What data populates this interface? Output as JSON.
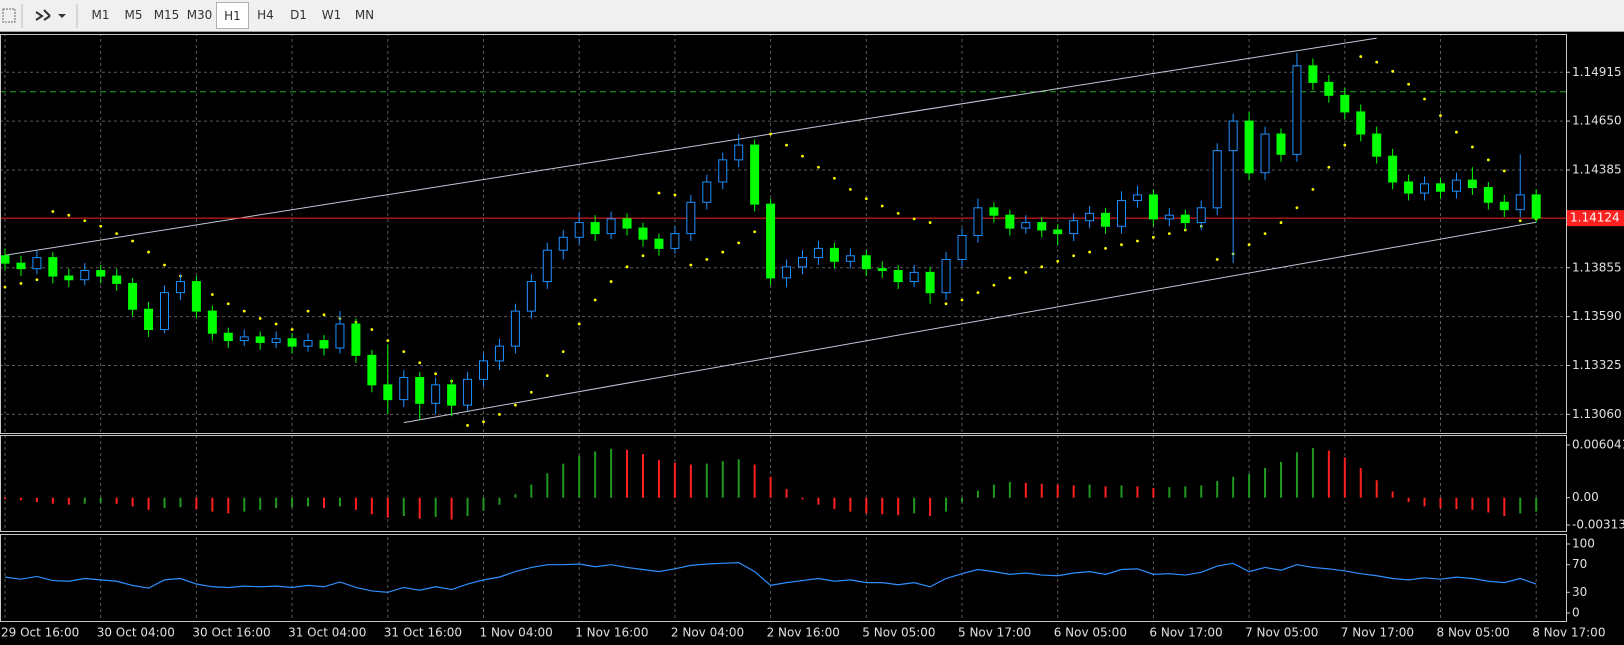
{
  "toolbar": {
    "timeframes": [
      "M1",
      "M5",
      "M15",
      "M30",
      "H1",
      "H4",
      "D1",
      "W1",
      "MN"
    ],
    "selected": 4
  },
  "chart_data": [
    {
      "type": "candlestick",
      "categories": [
        "29 Oct 16:00",
        null,
        null,
        null,
        null,
        null,
        "30 Oct 04:00",
        null,
        null,
        null,
        null,
        null,
        "30 Oct 16:00",
        null,
        null,
        null,
        null,
        null,
        "31 Oct 04:00",
        null,
        null,
        null,
        null,
        null,
        "31 Oct 16:00",
        null,
        null,
        null,
        null,
        null,
        "1 Nov 04:00",
        null,
        null,
        null,
        null,
        null,
        "1 Nov 16:00",
        null,
        null,
        null,
        null,
        null,
        "2 Nov 04:00",
        null,
        null,
        null,
        null,
        null,
        "2 Nov 16:00",
        null,
        null,
        null,
        null,
        null,
        "5 Nov 05:00",
        null,
        null,
        null,
        null,
        null,
        "5 Nov 17:00",
        null,
        null,
        null,
        null,
        null,
        "6 Nov 05:00",
        null,
        null,
        null,
        null,
        null,
        "6 Nov 17:00",
        null,
        null,
        null,
        null,
        null,
        "7 Nov 05:00",
        null,
        null,
        null,
        null,
        null,
        "7 Nov 17:00",
        null,
        null,
        null,
        null,
        null,
        "8 Nov 05:00",
        null,
        null,
        null,
        null,
        null,
        "8 Nov 17:00"
      ],
      "ohlc": [
        [
          1.1392,
          1.1396,
          1.1384,
          1.1388
        ],
        [
          1.1388,
          1.1392,
          1.1381,
          1.1385
        ],
        [
          1.1385,
          1.1395,
          1.1382,
          1.1391
        ],
        [
          1.1391,
          1.1394,
          1.1377,
          1.1381
        ],
        [
          1.1381,
          1.1385,
          1.1375,
          1.1379
        ],
        [
          1.1379,
          1.1388,
          1.1376,
          1.1384
        ],
        [
          1.1384,
          1.1387,
          1.1377,
          1.1381
        ],
        [
          1.1381,
          1.1385,
          1.1373,
          1.1377
        ],
        [
          1.1377,
          1.138,
          1.1359,
          1.1363
        ],
        [
          1.1363,
          1.1367,
          1.1348,
          1.1352
        ],
        [
          1.1352,
          1.1376,
          1.135,
          1.1372
        ],
        [
          1.1372,
          1.1382,
          1.1368,
          1.1378
        ],
        [
          1.1378,
          1.1381,
          1.1358,
          1.1362
        ],
        [
          1.1362,
          1.1365,
          1.1346,
          1.135
        ],
        [
          1.135,
          1.1353,
          1.1342,
          1.1346
        ],
        [
          1.1346,
          1.1352,
          1.1343,
          1.1348
        ],
        [
          1.1348,
          1.1351,
          1.1341,
          1.1345
        ],
        [
          1.1345,
          1.1351,
          1.1342,
          1.1347
        ],
        [
          1.1347,
          1.135,
          1.1339,
          1.1343
        ],
        [
          1.1343,
          1.135,
          1.134,
          1.1346
        ],
        [
          1.1346,
          1.1349,
          1.1338,
          1.1342
        ],
        [
          1.1342,
          1.1362,
          1.1339,
          1.1355
        ],
        [
          1.1355,
          1.1358,
          1.1334,
          1.1338
        ],
        [
          1.1338,
          1.1341,
          1.1318,
          1.1322
        ],
        [
          1.1322,
          1.1344,
          1.1306,
          1.1314
        ],
        [
          1.1314,
          1.133,
          1.131,
          1.1326
        ],
        [
          1.1326,
          1.1329,
          1.1303,
          1.1312
        ],
        [
          1.1312,
          1.1326,
          1.1306,
          1.1322
        ],
        [
          1.1322,
          1.1325,
          1.1305,
          1.1311
        ],
        [
          1.1311,
          1.1329,
          1.1308,
          1.1325
        ],
        [
          1.1325,
          1.1339,
          1.1321,
          1.1335
        ],
        [
          1.1335,
          1.1347,
          1.133,
          1.1343
        ],
        [
          1.1343,
          1.1366,
          1.1339,
          1.1362
        ],
        [
          1.1362,
          1.1382,
          1.1358,
          1.1378
        ],
        [
          1.1378,
          1.1399,
          1.1374,
          1.1395
        ],
        [
          1.1395,
          1.1406,
          1.139,
          1.1402
        ],
        [
          1.1402,
          1.1416,
          1.1398,
          1.141
        ],
        [
          1.141,
          1.1414,
          1.14,
          1.1404
        ],
        [
          1.1404,
          1.1416,
          1.1401,
          1.1412
        ],
        [
          1.1412,
          1.1415,
          1.1403,
          1.1407
        ],
        [
          1.1407,
          1.141,
          1.1397,
          1.1401
        ],
        [
          1.1401,
          1.1404,
          1.1392,
          1.1396
        ],
        [
          1.1396,
          1.1408,
          1.1393,
          1.1404
        ],
        [
          1.1404,
          1.1425,
          1.14,
          1.1421
        ],
        [
          1.1421,
          1.1436,
          1.1417,
          1.1432
        ],
        [
          1.1432,
          1.1448,
          1.1428,
          1.1444
        ],
        [
          1.1444,
          1.1458,
          1.144,
          1.1452
        ],
        [
          1.1452,
          1.1455,
          1.1416,
          1.142
        ],
        [
          1.142,
          1.1423,
          1.1376,
          1.138
        ],
        [
          1.138,
          1.139,
          1.1375,
          1.1386
        ],
        [
          1.1386,
          1.1395,
          1.1382,
          1.1391
        ],
        [
          1.1391,
          1.14,
          1.1387,
          1.1396
        ],
        [
          1.1396,
          1.1399,
          1.1385,
          1.1389
        ],
        [
          1.1389,
          1.1396,
          1.1385,
          1.1392
        ],
        [
          1.1392,
          1.1395,
          1.1381,
          1.1385
        ],
        [
          1.1385,
          1.1389,
          1.138,
          1.1384
        ],
        [
          1.1384,
          1.1387,
          1.1374,
          1.1378
        ],
        [
          1.1378,
          1.1387,
          1.1375,
          1.1383
        ],
        [
          1.1383,
          1.1386,
          1.1366,
          1.1372
        ],
        [
          1.1372,
          1.1394,
          1.1368,
          1.139
        ],
        [
          1.139,
          1.1407,
          1.1386,
          1.1403
        ],
        [
          1.1403,
          1.1423,
          1.1399,
          1.1418
        ],
        [
          1.1418,
          1.1421,
          1.141,
          1.1414
        ],
        [
          1.1414,
          1.1417,
          1.1403,
          1.1407
        ],
        [
          1.1407,
          1.1414,
          1.1404,
          1.141
        ],
        [
          1.141,
          1.1413,
          1.1402,
          1.1406
        ],
        [
          1.1406,
          1.1409,
          1.1398,
          1.1404
        ],
        [
          1.1404,
          1.1415,
          1.14,
          1.1411
        ],
        [
          1.1411,
          1.1419,
          1.1407,
          1.1415
        ],
        [
          1.1415,
          1.1418,
          1.1404,
          1.1408
        ],
        [
          1.1408,
          1.1427,
          1.1404,
          1.1422
        ],
        [
          1.1422,
          1.143,
          1.1418,
          1.1425
        ],
        [
          1.1425,
          1.1428,
          1.1408,
          1.1412
        ],
        [
          1.1412,
          1.1418,
          1.1408,
          1.1414
        ],
        [
          1.1414,
          1.1417,
          1.1406,
          1.141
        ],
        [
          1.141,
          1.1422,
          1.1406,
          1.1418
        ],
        [
          1.1418,
          1.1453,
          1.1414,
          1.1449
        ],
        [
          1.1449,
          1.1469,
          1.1388,
          1.1465
        ],
        [
          1.1465,
          1.147,
          1.1433,
          1.1437
        ],
        [
          1.1437,
          1.1462,
          1.1433,
          1.1458
        ],
        [
          1.1458,
          1.1461,
          1.1443,
          1.1447
        ],
        [
          1.1447,
          1.1502,
          1.1443,
          1.1495
        ],
        [
          1.1495,
          1.1499,
          1.1482,
          1.1486
        ],
        [
          1.1486,
          1.149,
          1.1475,
          1.1479
        ],
        [
          1.1479,
          1.1483,
          1.1466,
          1.147
        ],
        [
          1.147,
          1.1474,
          1.1454,
          1.1458
        ],
        [
          1.1458,
          1.1462,
          1.1442,
          1.1446
        ],
        [
          1.1446,
          1.145,
          1.1428,
          1.1432
        ],
        [
          1.1432,
          1.1436,
          1.1422,
          1.1426
        ],
        [
          1.1426,
          1.1435,
          1.1422,
          1.1431
        ],
        [
          1.1431,
          1.1434,
          1.1423,
          1.1427
        ],
        [
          1.1427,
          1.1437,
          1.1423,
          1.1433
        ],
        [
          1.1433,
          1.144,
          1.1425,
          1.1429
        ],
        [
          1.1429,
          1.1432,
          1.1417,
          1.1421
        ],
        [
          1.1421,
          1.1425,
          1.1413,
          1.1417
        ],
        [
          1.1417,
          1.1447,
          1.1413,
          1.1425
        ],
        [
          1.1425,
          1.1428,
          1.141,
          1.14124
        ]
      ],
      "up_color": "#1e90ff",
      "down_color": "#00ff00",
      "series": [
        {
          "color": "#ffff00",
          "values": [
            1.1375,
            1.1377,
            1.1379,
            1.1416,
            1.1414,
            1.1411,
            1.1408,
            1.1404,
            1.14,
            1.1394,
            1.1387,
            1.1381,
            1.1376,
            1.1371,
            1.1366,
            1.1362,
            1.1358,
            1.1355,
            1.1352,
            1.1362,
            1.136,
            1.1358,
            1.1356,
            1.1352,
            1.1346,
            1.134,
            1.1334,
            1.1328,
            1.1324,
            1.13,
            1.1302,
            1.1306,
            1.1311,
            1.1318,
            1.1327,
            1.134,
            1.1355,
            1.1368,
            1.1378,
            1.1386,
            1.1392,
            1.1426,
            1.1425,
            1.1387,
            1.139,
            1.1394,
            1.1399,
            1.1405,
            1.1458,
            1.1452,
            1.1446,
            1.144,
            1.1434,
            1.1428,
            1.1423,
            1.1419,
            1.1415,
            1.1412,
            1.141,
            1.1366,
            1.1368,
            1.1372,
            1.1376,
            1.138,
            1.1383,
            1.1386,
            1.1389,
            1.1392,
            1.1394,
            1.1396,
            1.1398,
            1.14,
            1.1402,
            1.1404,
            1.1406,
            1.1408,
            1.139,
            1.1393,
            1.1398,
            1.1404,
            1.141,
            1.1418,
            1.1428,
            1.144,
            1.1452,
            1.15,
            1.1497,
            1.1492,
            1.1485,
            1.1477,
            1.1468,
            1.1459,
            1.1451,
            1.1444,
            1.1438,
            1.1411,
            1.1412
          ]
        }
      ],
      "trendlines": [
        {
          "color": "#c0c8d8",
          "x": [
            0,
            86
          ],
          "values": [
            1.13923,
            1.151
          ]
        },
        {
          "color": "#c0c8d8",
          "x": [
            25,
            96
          ],
          "values": [
            1.13015,
            1.14102
          ]
        }
      ],
      "level": 1.14809,
      "level_color": "#22aa22",
      "last_price": 1.14124,
      "last_price_color": "#ff2020",
      "ylim": [
        1.12959,
        1.15117
      ],
      "yticks": [
        1.14915,
        {
          "value": 1.1465,
          "label": "1.14650"
        },
        1.14385,
        1.13855,
        {
          "value": 1.1359,
          "label": "1.13590"
        },
        1.13325,
        {
          "value": 1.1306,
          "label": "1.13060"
        }
      ],
      "grid": true
    },
    {
      "type": "histogram",
      "values": [
        -0.0002,
        -0.0003,
        -0.0005,
        -0.0007,
        -0.0008,
        -0.0007,
        -0.0006,
        -0.0007,
        -0.001,
        -0.0014,
        -0.0012,
        -0.0011,
        -0.0013,
        -0.0016,
        -0.0018,
        -0.0016,
        -0.0014,
        -0.0012,
        -0.0011,
        -0.001,
        -0.0012,
        -0.001,
        -0.0014,
        -0.0019,
        -0.0023,
        -0.0021,
        -0.0024,
        -0.0022,
        -0.0025,
        -0.0021,
        -0.0015,
        -0.0008,
        0.0004,
        0.0015,
        0.0028,
        0.0039,
        0.0048,
        0.0053,
        0.0056,
        0.0055,
        0.005,
        0.0043,
        0.004,
        0.0038,
        0.0039,
        0.0042,
        0.0044,
        0.0038,
        0.0024,
        0.001,
        -0.0002,
        -0.0008,
        -0.0013,
        -0.0016,
        -0.0018,
        -0.0019,
        -0.002,
        -0.0018,
        -0.0021,
        -0.0016,
        -0.0005,
        0.0008,
        0.0015,
        0.0018,
        0.0017,
        0.0016,
        0.0015,
        0.0014,
        0.0015,
        0.0013,
        0.0014,
        0.0013,
        0.0011,
        0.0012,
        0.0013,
        0.0014,
        0.0019,
        0.0024,
        0.0027,
        0.0034,
        0.0041,
        0.0052,
        0.0057,
        0.0054,
        0.0046,
        0.0034,
        0.002,
        0.0007,
        -0.0005,
        -0.001,
        -0.0012,
        -0.0013,
        -0.0014,
        -0.0017,
        -0.0021,
        -0.0018,
        -0.0016
      ],
      "up_color": "#1f9a1f",
      "down_color": "#ff2020",
      "ylim": [
        -0.00382,
        0.00707
      ],
      "yticks": [
        0.006041,
        {
          "value": 0,
          "label": "0.00"
        },
        -0.003139
      ]
    },
    {
      "type": "line",
      "color": "#2f8fff",
      "values": [
        52,
        49,
        53,
        47,
        46,
        50,
        48,
        46,
        40,
        36,
        48,
        50,
        42,
        38,
        37,
        39,
        38,
        39,
        37,
        40,
        38,
        45,
        37,
        32,
        30,
        37,
        33,
        38,
        34,
        42,
        48,
        52,
        60,
        66,
        70,
        70,
        71,
        67,
        70,
        66,
        63,
        60,
        64,
        69,
        71,
        72,
        73,
        60,
        40,
        44,
        47,
        50,
        46,
        48,
        44,
        44,
        41,
        44,
        38,
        50,
        57,
        63,
        60,
        56,
        58,
        55,
        54,
        58,
        60,
        56,
        63,
        64,
        56,
        57,
        55,
        59,
        68,
        72,
        60,
        66,
        62,
        70,
        66,
        64,
        61,
        57,
        54,
        50,
        48,
        51,
        49,
        52,
        50,
        46,
        44,
        50,
        42
      ],
      "ylim": [
        0,
        100
      ],
      "yticks": [
        100,
        70,
        30,
        0
      ]
    }
  ]
}
